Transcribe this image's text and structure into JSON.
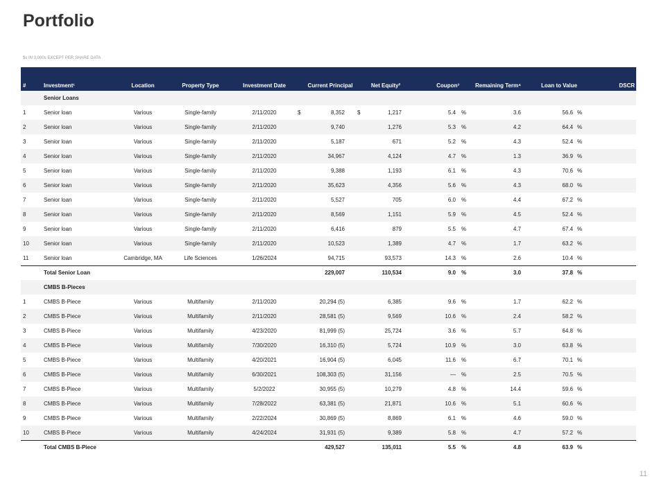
{
  "header": {
    "title": "Portfolio",
    "subtitle": "$s IN 0,000s EXCEPT PER SHARE DATA"
  },
  "table": {
    "columns": [
      "#",
      "Investment¹",
      "Location",
      "Property Type",
      "Investment Date",
      "Current Principal",
      "Net Equity²",
      "Coupon³",
      "Remaining Term⁴",
      "Loan to Value",
      "DSCR"
    ],
    "currency": "$",
    "percent": "%",
    "sections": [
      {
        "title": "Senior Loans",
        "rows": [
          [
            "1",
            "Senior loan",
            "Various",
            "Single-family",
            "2/11/2020",
            "8,352",
            "1,217",
            "5.4",
            "3.6",
            "56.6"
          ],
          [
            "2",
            "Senior loan",
            "Various",
            "Single-family",
            "2/11/2020",
            "9,740",
            "1,276",
            "5.3",
            "4.2",
            "64.4"
          ],
          [
            "3",
            "Senior loan",
            "Various",
            "Single-family",
            "2/11/2020",
            "5,187",
            "671",
            "5.2",
            "4.3",
            "52.4"
          ],
          [
            "4",
            "Senior loan",
            "Various",
            "Single-family",
            "2/11/2020",
            "34,967",
            "4,124",
            "4.7",
            "1.3",
            "36.9"
          ],
          [
            "5",
            "Senior loan",
            "Various",
            "Single-family",
            "2/11/2020",
            "9,388",
            "1,193",
            "6.1",
            "4.3",
            "70.6"
          ],
          [
            "6",
            "Senior loan",
            "Various",
            "Single-family",
            "2/11/2020",
            "35,623",
            "4,356",
            "5.6",
            "4.3",
            "68.0"
          ],
          [
            "7",
            "Senior loan",
            "Various",
            "Single-family",
            "2/11/2020",
            "5,527",
            "705",
            "6.0",
            "4.4",
            "67.2"
          ],
          [
            "8",
            "Senior loan",
            "Various",
            "Single-family",
            "2/11/2020",
            "8,569",
            "1,151",
            "5.9",
            "4.5",
            "52.4"
          ],
          [
            "9",
            "Senior loan",
            "Various",
            "Single-family",
            "2/11/2020",
            "6,416",
            "879",
            "5.5",
            "4.7",
            "67.4"
          ],
          [
            "10",
            "Senior loan",
            "Various",
            "Single-family",
            "2/11/2020",
            "10,523",
            "1,389",
            "4.7",
            "1.7",
            "63.2"
          ],
          [
            "11",
            "Senior loan",
            "Cambridge, MA",
            "Life Sciences",
            "1/26/2024",
            "94,715",
            "93,573",
            "14.3",
            "2.6",
            "10.4"
          ]
        ],
        "total": {
          "label": "Total Senior Loan",
          "principal": "229,007",
          "net_equity": "110,534",
          "coupon": "9.0",
          "term": "3.0",
          "ltv": "37.8"
        }
      },
      {
        "title": "CMBS B-Pieces",
        "rows": [
          [
            "1",
            "CMBS B-Piece",
            "Various",
            "Multifamily",
            "2/11/2020",
            "20,294 (5)",
            "6,385",
            "9.6",
            "1.7",
            "62.2"
          ],
          [
            "2",
            "CMBS B-Piece",
            "Various",
            "Multifamily",
            "2/11/2020",
            "28,581 (5)",
            "9,569",
            "10.6",
            "2.4",
            "58.2"
          ],
          [
            "3",
            "CMBS B-Piece",
            "Various",
            "Multifamily",
            "4/23/2020",
            "81,999 (5)",
            "25,724",
            "3.6",
            "5.7",
            "64.8"
          ],
          [
            "4",
            "CMBS B-Piece",
            "Various",
            "Multifamily",
            "7/30/2020",
            "16,310 (5)",
            "5,724",
            "10.9",
            "3.0",
            "63.8"
          ],
          [
            "5",
            "CMBS B-Piece",
            "Various",
            "Multifamily",
            "4/20/2021",
            "16,904 (5)",
            "6,045",
            "11.6",
            "6.7",
            "70.1"
          ],
          [
            "6",
            "CMBS B-Piece",
            "Various",
            "Multifamily",
            "6/30/2021",
            "108,303 (5)",
            "31,156",
            "—",
            "2.5",
            "70.5"
          ],
          [
            "7",
            "CMBS B-Piece",
            "Various",
            "Multifamily",
            "5/2/2022",
            "30,955 (5)",
            "10,279",
            "4.8",
            "14.4",
            "59.6"
          ],
          [
            "8",
            "CMBS B-Piece",
            "Various",
            "Multifamily",
            "7/28/2022",
            "63,381 (5)",
            "21,871",
            "10.6",
            "5.1",
            "60.6"
          ],
          [
            "9",
            "CMBS B-Piece",
            "Various",
            "Multifamily",
            "2/22/2024",
            "30,869 (5)",
            "8,869",
            "6.1",
            "4.6",
            "59.0"
          ],
          [
            "10",
            "CMBS B-Piece",
            "Various",
            "Multifamily",
            "4/24/2024",
            "31,931 (5)",
            "9,389",
            "5.8",
            "4.7",
            "57.2"
          ]
        ],
        "total": {
          "label": "Total CMBS B-Piece",
          "principal": "429,527",
          "net_equity": "135,011",
          "coupon": "5.5",
          "term": "4.8",
          "ltv": "63.9"
        }
      }
    ]
  },
  "page_number": "11"
}
